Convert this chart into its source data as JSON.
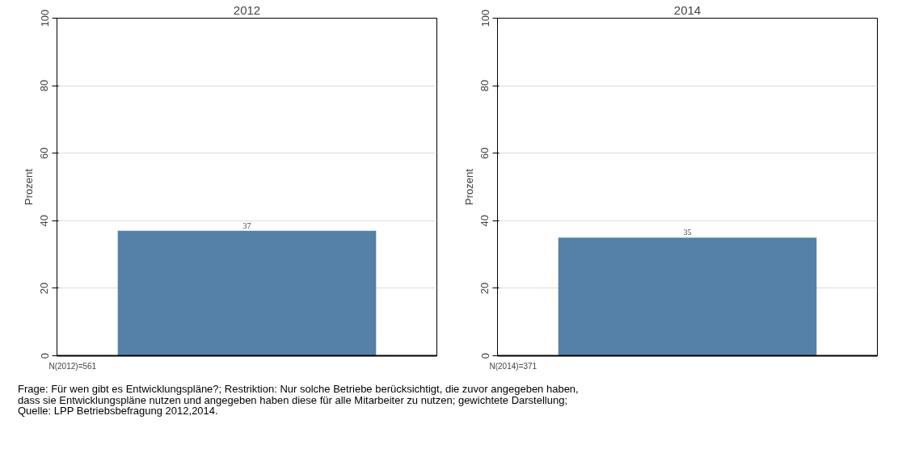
{
  "chart_data": [
    {
      "type": "bar",
      "title": "2012",
      "ylabel": "Prozent",
      "categories": [
        null
      ],
      "values": [
        37
      ],
      "color": "#5580a8",
      "data_labels": true,
      "ylim": [
        0,
        100
      ],
      "yticks": [
        0,
        20,
        40,
        60,
        80,
        100
      ],
      "grid": "y",
      "tick_labels": "y",
      "annotations": [
        "N(2012)=561",
        "Frage: Für wen gibt es Entwicklungspläne?; Restriktion: Nur solche Betriebe berücksichtigt, die zuvor angegeben haben,\ndass sie Entwicklungspläne nutzen und angegeben haben diese für alle Mitarbeiter zu nutzen; gewichtete Darstellung;\nQuelle: LPP Betriebsbefragung 2012,2014."
      ]
    },
    {
      "type": "bar",
      "title": "2014",
      "ylabel": "Prozent",
      "categories": [
        null
      ],
      "values": [
        35
      ],
      "color": "#5580a8",
      "data_labels": true,
      "ylim": [
        0,
        100
      ],
      "yticks": [
        0,
        20,
        40,
        60,
        80,
        100
      ],
      "grid": "y",
      "tick_labels": "y",
      "annotations": [
        "N(2014)=371"
      ]
    }
  ]
}
